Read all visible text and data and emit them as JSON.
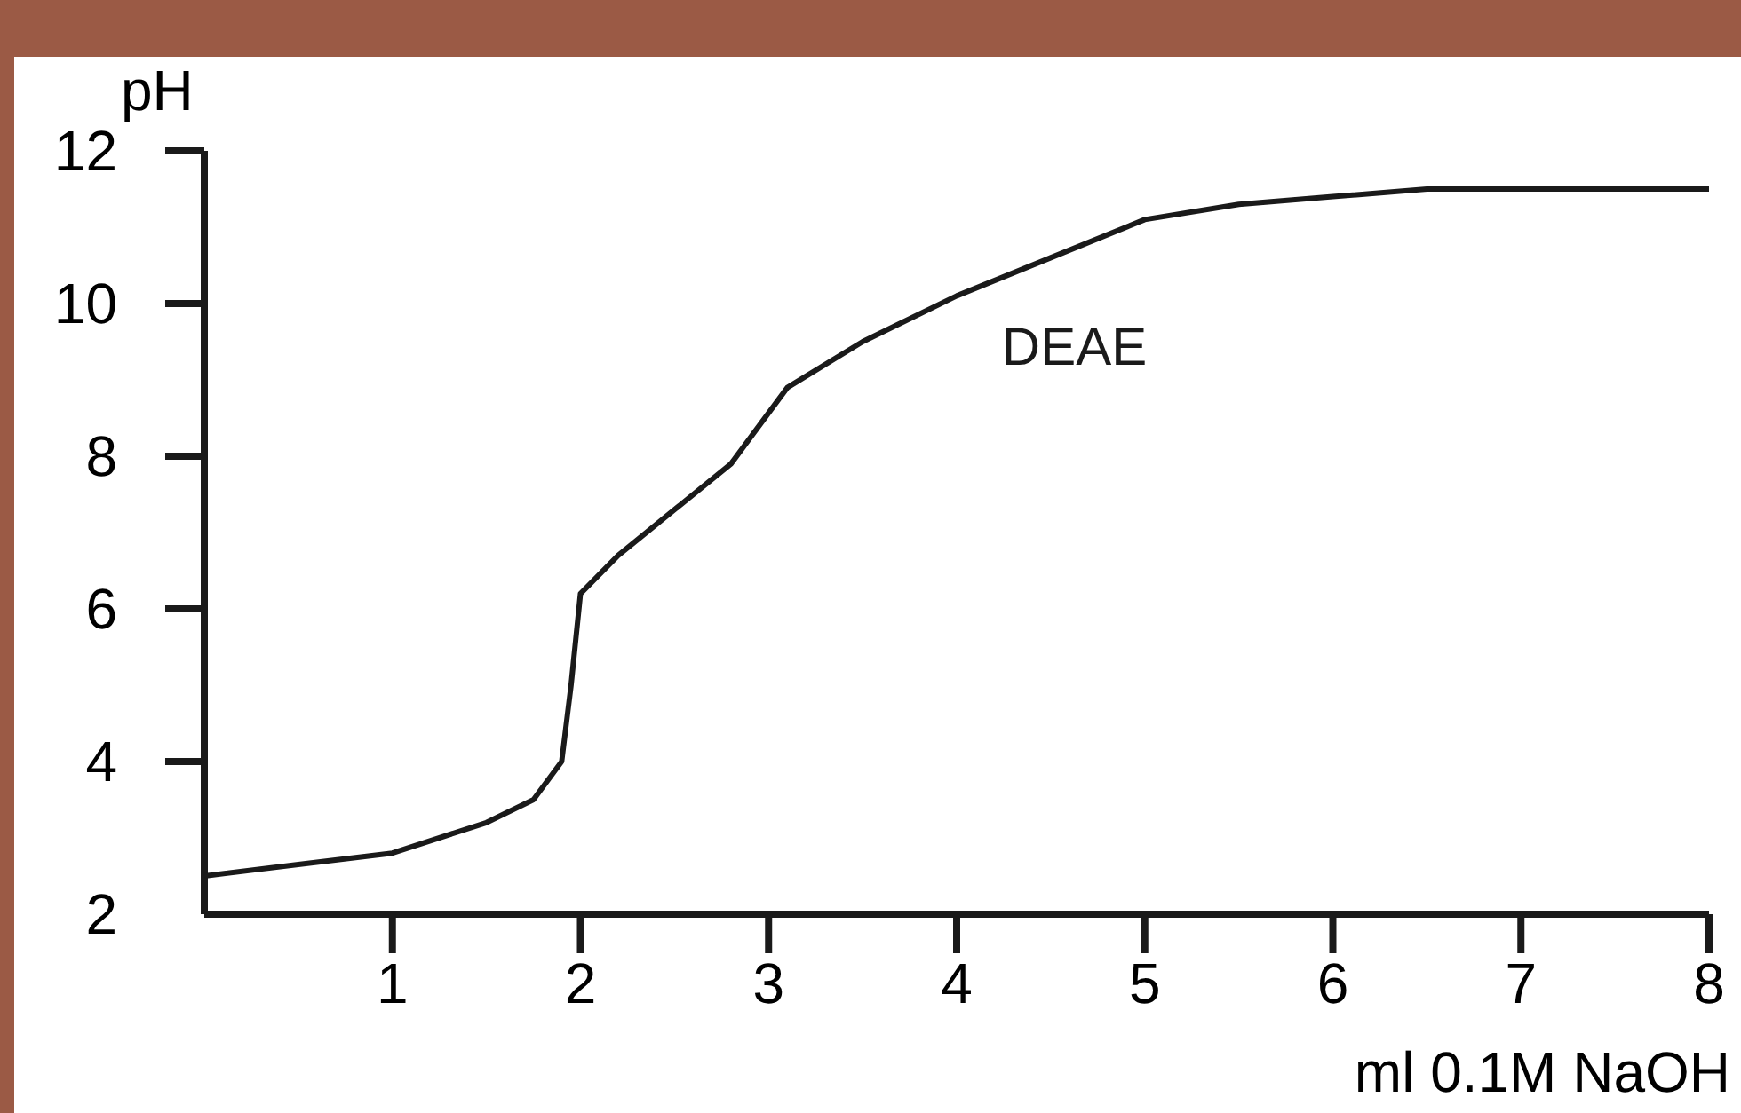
{
  "chart_data": {
    "type": "line",
    "xlabel": "ml 0.1M NaOH",
    "ylabel": "pH",
    "xlim": [
      0,
      8
    ],
    "ylim": [
      2,
      12
    ],
    "xticks": [
      1,
      2,
      3,
      4,
      5,
      6,
      7,
      8
    ],
    "yticks": [
      2,
      4,
      6,
      8,
      10,
      12
    ],
    "grid": false,
    "marker": "none",
    "line_style": "solid",
    "series": [
      {
        "name": "DEAE",
        "color": "#1a1a1a",
        "x": [
          0,
          0.5,
          1,
          1.5,
          1.75,
          1.9,
          1.95,
          2,
          2.2,
          2.5,
          2.8,
          3.1,
          3.5,
          4,
          4.5,
          5,
          5.5,
          6,
          6.5,
          8
        ],
        "values": [
          2.5,
          2.65,
          2.8,
          3.2,
          3.5,
          4,
          5,
          6.2,
          6.7,
          7.3,
          7.9,
          8.9,
          9.5,
          10.1,
          10.6,
          11.1,
          11.3,
          11.4,
          11.5,
          11.5
        ]
      }
    ]
  }
}
